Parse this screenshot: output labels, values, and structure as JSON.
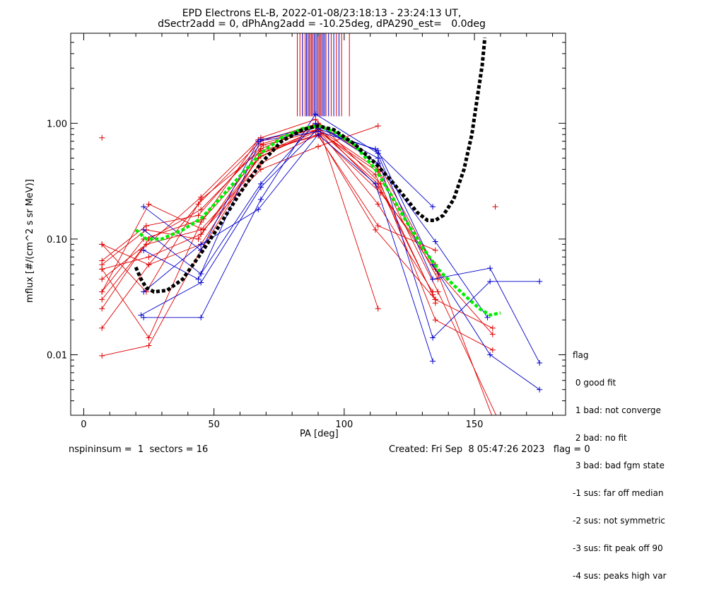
{
  "title_line1": "EPD Electrons EL-B, 2022-01-08/23:18:13 - 23:24:13 UT,",
  "title_line2": "dSectr2add = 0, dPhAng2add = -10.25deg, dPA290_est=   0.0deg",
  "footer_left": "nspininsum =  1  sectors = 16",
  "footer_right": "Created: Fri Sep  8 05:47:26 2023   flag = 0",
  "legend": {
    "title": "flag",
    "items": [
      " 0 good fit",
      " 1 bad: not converge",
      " 2 bad: no fit",
      " 3 bad: bad fgm state",
      "-1 sus: far off median",
      "-2 sus: not symmetric",
      "-3 sus: fit peak off 90",
      "-4 sus: peaks high var"
    ]
  },
  "colors": {
    "red": "#e00000",
    "blue": "#0000cc",
    "green": "#00ee00",
    "black": "#000000"
  },
  "chart_data": {
    "type": "line",
    "xlabel": "PA [deg]",
    "ylabel": "mflux [#/(cm^2 s sr MeV)]",
    "xlim": [
      -5,
      185
    ],
    "ylim": [
      0.003,
      6
    ],
    "yscale": "log",
    "xticks": [
      0,
      50,
      100,
      150
    ],
    "yticks": [
      0.01,
      0.1,
      1.0
    ],
    "ytick_labels": [
      "0.01",
      "0.10",
      "1.00"
    ],
    "red_series": [
      [
        [
          7,
          0.09
        ],
        [
          25,
          0.06
        ],
        [
          45,
          0.09
        ],
        [
          68,
          0.55
        ],
        [
          90,
          0.88
        ],
        [
          113,
          0.3
        ],
        [
          135,
          0.03
        ],
        [
          157,
          0.017
        ]
      ],
      [
        [
          7,
          0.06
        ],
        [
          24,
          0.12
        ],
        [
          44,
          0.1
        ],
        [
          68,
          0.6
        ],
        [
          88,
          0.95
        ],
        [
          112,
          0.36
        ],
        [
          134,
          0.033
        ]
      ],
      [
        [
          7,
          0.035
        ],
        [
          23,
          0.1
        ],
        [
          46,
          0.15
        ],
        [
          67,
          0.5
        ],
        [
          90,
          0.9
        ],
        [
          113,
          0.4
        ],
        [
          136,
          0.045
        ]
      ],
      [
        [
          7,
          0.025
        ],
        [
          25,
          0.1
        ],
        [
          45,
          0.18
        ],
        [
          69,
          0.65
        ],
        [
          89,
          0.85
        ],
        [
          114,
          0.25
        ],
        [
          135,
          0.06
        ]
      ],
      [
        [
          7,
          0.045
        ],
        [
          24,
          0.09
        ],
        [
          45,
          0.12
        ],
        [
          68,
          0.45
        ],
        [
          90,
          0.8
        ],
        [
          112,
          0.12
        ],
        [
          135,
          0.03
        ]
      ],
      [
        [
          7,
          0.017
        ],
        [
          25,
          0.06
        ],
        [
          44,
          0.2
        ],
        [
          68,
          0.7
        ],
        [
          90,
          1.0
        ],
        [
          113,
          0.45
        ],
        [
          135,
          0.055
        ],
        [
          157,
          0.015
        ]
      ],
      [
        [
          7,
          0.0098
        ],
        [
          25,
          0.012
        ],
        [
          45,
          0.08
        ],
        [
          68,
          0.55
        ],
        [
          91,
          0.82
        ],
        [
          113,
          0.025
        ]
      ],
      [
        [
          7,
          0.055
        ],
        [
          25,
          0.014
        ],
        [
          45,
          0.14
        ],
        [
          67,
          0.72
        ],
        [
          90,
          0.88
        ],
        [
          113,
          0.2
        ],
        [
          134,
          0.035
        ]
      ],
      [
        [
          7,
          0.09
        ],
        [
          24,
          0.035
        ],
        [
          45,
          0.22
        ],
        [
          68,
          0.58
        ],
        [
          90,
          0.78
        ],
        [
          113,
          0.13
        ],
        [
          135,
          0.08
        ]
      ],
      [
        [
          7,
          0.035
        ],
        [
          25,
          0.2
        ],
        [
          46,
          0.12
        ],
        [
          68,
          0.4
        ],
        [
          90,
          0.63
        ],
        [
          113,
          0.95
        ]
      ],
      [
        [
          7,
          0.03
        ],
        [
          22,
          0.08
        ],
        [
          45,
          0.23
        ],
        [
          68,
          0.75
        ],
        [
          89,
          1.08
        ],
        [
          114,
          0.3
        ],
        [
          135,
          0.02
        ],
        [
          157,
          0.011
        ]
      ],
      [
        [
          7,
          0.065
        ],
        [
          24,
          0.13
        ],
        [
          44,
          0.16
        ],
        [
          68,
          0.66
        ],
        [
          90,
          0.93
        ],
        [
          113,
          0.28
        ],
        [
          136,
          0.05
        ],
        [
          158,
          0.0025
        ]
      ],
      [
        [
          7,
          0.055
        ],
        [
          25,
          0.07
        ],
        [
          45,
          0.11
        ],
        [
          68,
          0.52
        ],
        [
          90,
          0.86
        ],
        [
          113,
          0.38
        ],
        [
          136,
          0.035
        ],
        [
          160,
          0.0025
        ]
      ]
    ],
    "blue_series": [
      [
        [
          23,
          0.021
        ],
        [
          45,
          0.021
        ],
        [
          68,
          0.22
        ],
        [
          89,
          1.2
        ],
        [
          113,
          0.55
        ],
        [
          134,
          0.19
        ]
      ],
      [
        [
          23,
          0.19
        ],
        [
          45,
          0.08
        ],
        [
          67,
          0.7
        ],
        [
          90,
          0.85
        ],
        [
          112,
          0.6
        ],
        [
          134,
          0.045
        ],
        [
          156,
          0.056
        ],
        [
          175,
          0.0085
        ]
      ],
      [
        [
          23,
          0.08
        ],
        [
          44,
          0.045
        ],
        [
          68,
          0.72
        ],
        [
          90,
          0.95
        ],
        [
          113,
          0.5
        ],
        [
          134,
          0.014
        ],
        [
          156,
          0.043
        ],
        [
          175,
          0.043
        ]
      ],
      [
        [
          23,
          0.035
        ],
        [
          45,
          0.09
        ],
        [
          67,
          0.18
        ],
        [
          90,
          0.8
        ],
        [
          112,
          0.3
        ],
        [
          134,
          0.0088
        ]
      ],
      [
        [
          23,
          0.12
        ],
        [
          45,
          0.05
        ],
        [
          68,
          0.3
        ],
        [
          89,
          1.0
        ],
        [
          113,
          0.45
        ],
        [
          135,
          0.095
        ],
        [
          155,
          0.021
        ]
      ],
      [
        [
          22,
          0.022
        ],
        [
          45,
          0.042
        ],
        [
          68,
          0.28
        ],
        [
          90,
          0.9
        ],
        [
          113,
          0.58
        ],
        [
          134,
          0.06
        ],
        [
          156,
          0.01
        ],
        [
          175,
          0.005
        ]
      ]
    ],
    "red_crosses_extra": [
      [
        7,
        0.75
      ],
      [
        158,
        0.19
      ],
      [
        135,
        0.03
      ],
      [
        135,
        0.028
      ]
    ],
    "black_curve": [
      [
        20,
        0.057
      ],
      [
        22,
        0.045
      ],
      [
        24,
        0.038
      ],
      [
        27,
        0.035
      ],
      [
        32,
        0.036
      ],
      [
        38,
        0.045
      ],
      [
        45,
        0.075
      ],
      [
        52,
        0.13
      ],
      [
        60,
        0.25
      ],
      [
        68,
        0.45
      ],
      [
        76,
        0.7
      ],
      [
        84,
        0.88
      ],
      [
        90,
        0.95
      ],
      [
        96,
        0.88
      ],
      [
        104,
        0.66
      ],
      [
        112,
        0.45
      ],
      [
        118,
        0.32
      ],
      [
        124,
        0.22
      ],
      [
        128,
        0.17
      ],
      [
        132,
        0.145
      ],
      [
        135,
        0.145
      ],
      [
        138,
        0.16
      ],
      [
        142,
        0.22
      ],
      [
        146,
        0.4
      ],
      [
        149,
        0.8
      ],
      [
        151,
        1.6
      ],
      [
        153,
        3.2
      ],
      [
        154,
        5.5
      ]
    ],
    "green_curve": [
      [
        20,
        0.12
      ],
      [
        24,
        0.1
      ],
      [
        30,
        0.1
      ],
      [
        38,
        0.12
      ],
      [
        45,
        0.15
      ],
      [
        52,
        0.22
      ],
      [
        60,
        0.35
      ],
      [
        68,
        0.55
      ],
      [
        76,
        0.75
      ],
      [
        84,
        0.9
      ],
      [
        90,
        0.95
      ],
      [
        96,
        0.85
      ],
      [
        104,
        0.65
      ],
      [
        112,
        0.4
      ],
      [
        118,
        0.24
      ],
      [
        124,
        0.14
      ],
      [
        130,
        0.085
      ],
      [
        136,
        0.055
      ],
      [
        142,
        0.04
      ],
      [
        148,
        0.03
      ],
      [
        152,
        0.025
      ],
      [
        156,
        0.022
      ],
      [
        160,
        0.023
      ]
    ],
    "red_vlines_x": [
      82,
      83,
      84,
      85,
      86,
      87,
      88,
      89,
      90,
      91,
      92,
      93,
      95,
      97,
      99,
      102
    ],
    "blue_vlines_x": [
      84,
      85.5,
      86.5,
      87.5,
      88.5,
      89.5,
      90.5,
      91.5,
      92.5,
      94,
      96,
      98
    ],
    "vline_range": [
      1.15,
      6
    ]
  }
}
